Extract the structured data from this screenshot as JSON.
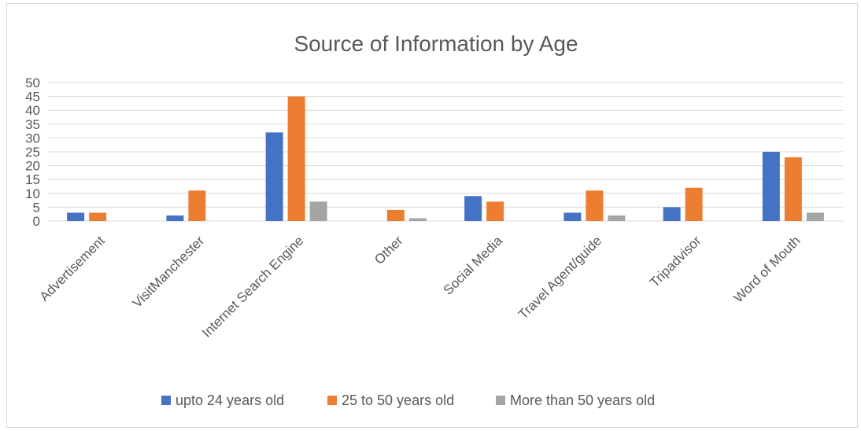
{
  "chart_data": {
    "type": "bar",
    "title": "Source of Information by Age",
    "xlabel": "",
    "ylabel": "",
    "ylim": [
      0,
      50
    ],
    "yticks": [
      0,
      5,
      10,
      15,
      20,
      25,
      30,
      35,
      40,
      45,
      50
    ],
    "grid": true,
    "legend_position": "bottom",
    "categories": [
      "Advertisement",
      "VisitManchester",
      "Internet Search Engine",
      "Other",
      "Social Media",
      "Travel Agent/guide",
      "Tripadvisor",
      "Word of Mouth"
    ],
    "series": [
      {
        "name": "upto 24 years old",
        "color": "#4472C4",
        "values": [
          3,
          2,
          32,
          0,
          9,
          3,
          5,
          25
        ]
      },
      {
        "name": "25 to 50 years old",
        "color": "#ED7D31",
        "values": [
          3,
          11,
          45,
          4,
          7,
          11,
          12,
          23
        ]
      },
      {
        "name": "More than 50 years old",
        "color": "#A5A5A5",
        "values": [
          0,
          0,
          7,
          1,
          0,
          2,
          0,
          3
        ]
      }
    ]
  }
}
